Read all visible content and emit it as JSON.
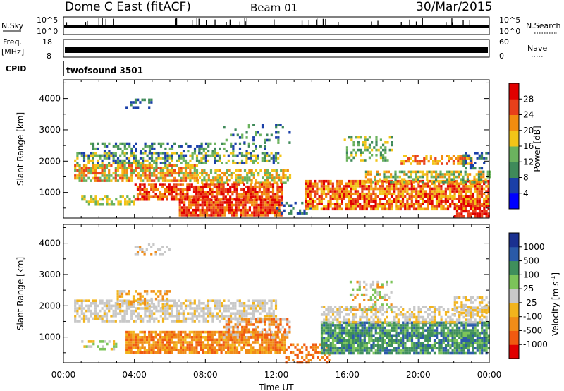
{
  "header": {
    "station": "Dome C East (fitACF)",
    "beam": "Beam 01",
    "date": "30/Mar/2015"
  },
  "top_panels": {
    "nsky_label": "N.Sky",
    "nsky_ticks": [
      "10^5",
      "10^0"
    ],
    "nsearch_label": "N.Search",
    "nsearch_ticks": [
      "10^5",
      "10^0"
    ],
    "freq_label_1": "Freq.",
    "freq_label_2": "[MHz]",
    "freq_ticks": [
      "18",
      "8"
    ],
    "nave_label": "Nave",
    "nave_ticks": [
      "60",
      "0"
    ],
    "cpid_label": "CPID",
    "cpid_text": "twofsound 3501"
  },
  "chart_data": [
    {
      "type": "heatmap",
      "name": "power",
      "xlabel": "",
      "ylabel": "Slant Range [km]",
      "x_ticks": [
        "00:00",
        "04:00",
        "08:00",
        "12:00",
        "16:00",
        "20:00",
        "00:00"
      ],
      "xlim_hours": [
        0,
        24
      ],
      "y_ticks": [
        1000,
        2000,
        3000,
        4000
      ],
      "ylim_km": [
        180,
        4600
      ],
      "colorbar": {
        "label": "Power [dB]",
        "ticks": [
          "28",
          "24",
          "20",
          "16",
          "12",
          "8",
          "4"
        ],
        "colors": [
          "#0000ff",
          "#1a3fa8",
          "#3f8a5a",
          "#6bb25e",
          "#f2c418",
          "#f28c10",
          "#e8401a",
          "#e00000"
        ]
      }
    },
    {
      "type": "heatmap",
      "name": "velocity",
      "xlabel": "Time UT",
      "ylabel": "Slant Range [km]",
      "x_ticks": [
        "00:00",
        "04:00",
        "08:00",
        "12:00",
        "16:00",
        "20:00",
        "00:00"
      ],
      "xlim_hours": [
        0,
        24
      ],
      "y_ticks": [
        1000,
        2000,
        3000,
        4000
      ],
      "ylim_km": [
        180,
        4600
      ],
      "colorbar": {
        "label_main": "Velocity",
        "label_unit": "[m s",
        "label_exp": "-1",
        "label_close": "]",
        "ticks": [
          "1000",
          "500",
          "100",
          "25",
          "-25",
          "-100",
          "-500",
          "-1000"
        ],
        "colors": [
          "#e00000",
          "#f05a10",
          "#f08c18",
          "#f2b41c",
          "#c8c8c8",
          "#7cc45a",
          "#3f8f5c",
          "#2a5aa8",
          "#1a3090"
        ]
      }
    }
  ]
}
